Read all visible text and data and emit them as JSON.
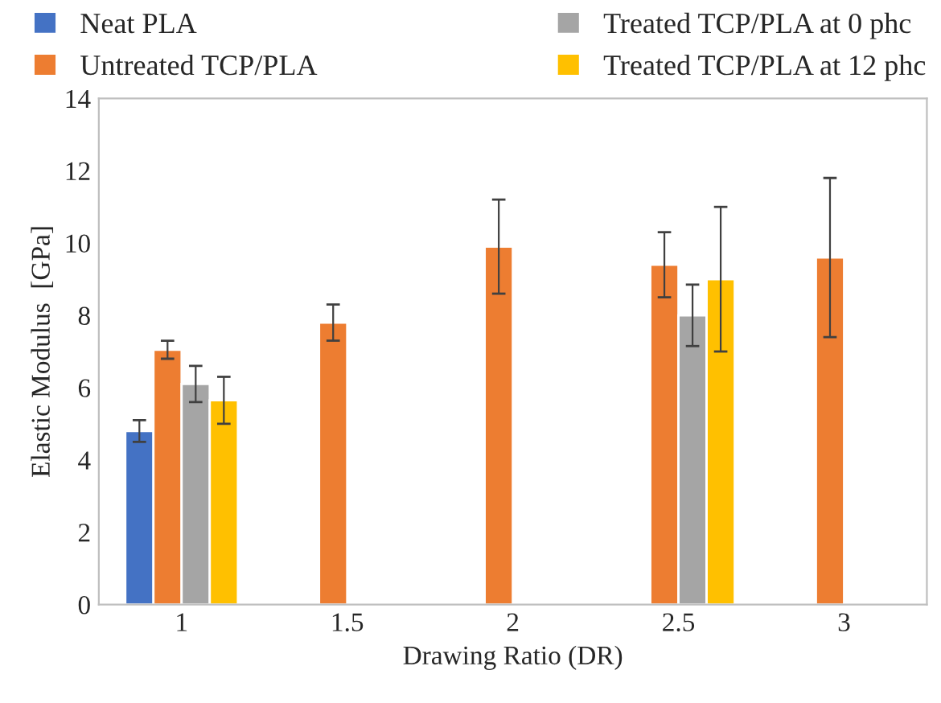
{
  "chart_data": {
    "type": "bar",
    "xlabel": "Drawing Ratio (DR)",
    "ylabel": "Elastic Modulus  [GPa]",
    "categories": [
      "1",
      "1.5",
      "2",
      "2.5",
      "3"
    ],
    "series": [
      {
        "name": "Neat PLA",
        "color": "#4472c4",
        "values": [
          4.8,
          null,
          null,
          null,
          null
        ],
        "errors": [
          0.3,
          null,
          null,
          null,
          null
        ]
      },
      {
        "name": "Untreated TCP/PLA",
        "color": "#ed7d31",
        "values": [
          7.05,
          7.8,
          9.9,
          9.4,
          9.6
        ],
        "errors": [
          0.25,
          0.5,
          1.3,
          0.9,
          2.2
        ]
      },
      {
        "name": "Treated TCP/PLA at 0 phc",
        "color": "#a5a5a5",
        "values": [
          6.1,
          null,
          null,
          8.0,
          null
        ],
        "errors": [
          0.5,
          null,
          null,
          0.85,
          null
        ]
      },
      {
        "name": "Treated TCP/PLA at 12 phc",
        "color": "#ffc000",
        "values": [
          5.65,
          null,
          null,
          9.0,
          null
        ],
        "errors": [
          0.65,
          null,
          null,
          2.0,
          null
        ]
      }
    ],
    "ylim": [
      0,
      14
    ],
    "yticks": [
      0,
      2,
      4,
      6,
      8,
      10,
      12,
      14
    ],
    "grid": false,
    "legend": "top"
  }
}
